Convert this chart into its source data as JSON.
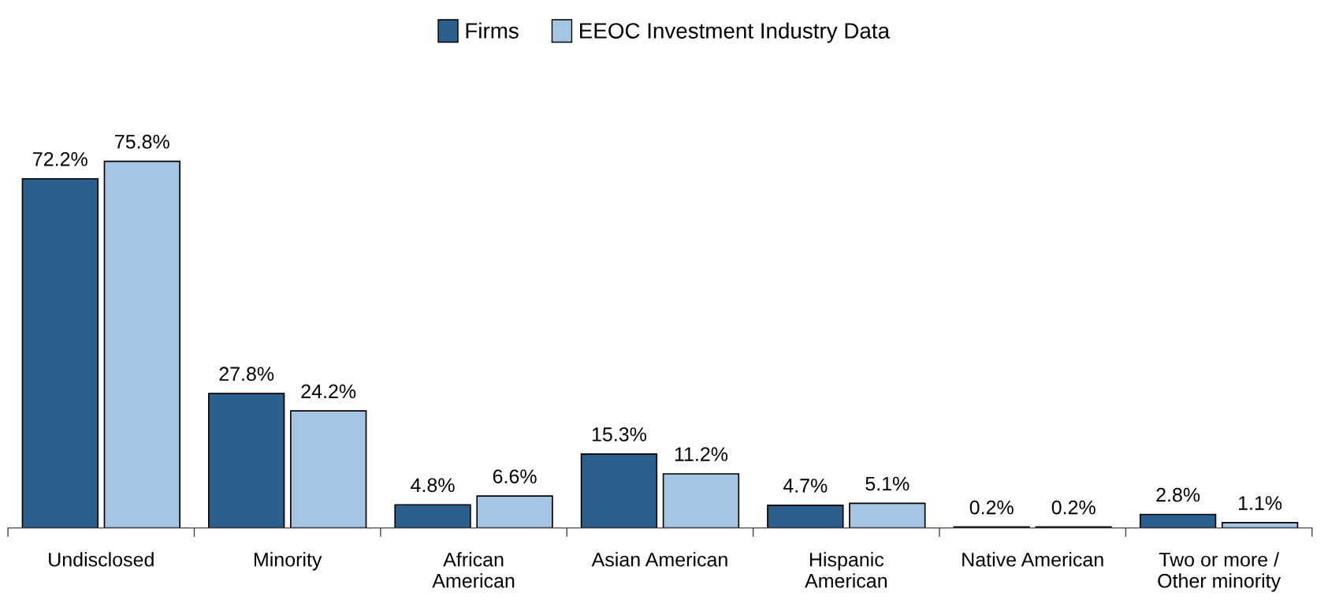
{
  "chart_data": {
    "type": "bar",
    "categories": [
      "Undisclosed",
      "Minority",
      "African\nAmerican",
      "Asian American",
      "Hispanic\nAmerican",
      "Native American",
      "Two or more /\nOther minority"
    ],
    "series": [
      {
        "name": "Firms",
        "color": "#2b5f8e",
        "values": [
          72.2,
          27.8,
          4.8,
          15.3,
          4.7,
          0.2,
          2.8
        ],
        "value_labels": [
          "72.2%",
          "27.8%",
          "4.8%",
          "15.3%",
          "4.7%",
          "0.2%",
          "2.8%"
        ]
      },
      {
        "name": "EEOC Investment Industry Data",
        "color": "#a4c5e3",
        "values": [
          75.8,
          24.2,
          6.6,
          11.2,
          5.1,
          0.2,
          1.1
        ],
        "value_labels": [
          "75.8%",
          "24.2%",
          "6.6%",
          "11.2%",
          "5.1%",
          "0.2%",
          "1.1%"
        ]
      }
    ],
    "legend": "top",
    "grid": false
  }
}
